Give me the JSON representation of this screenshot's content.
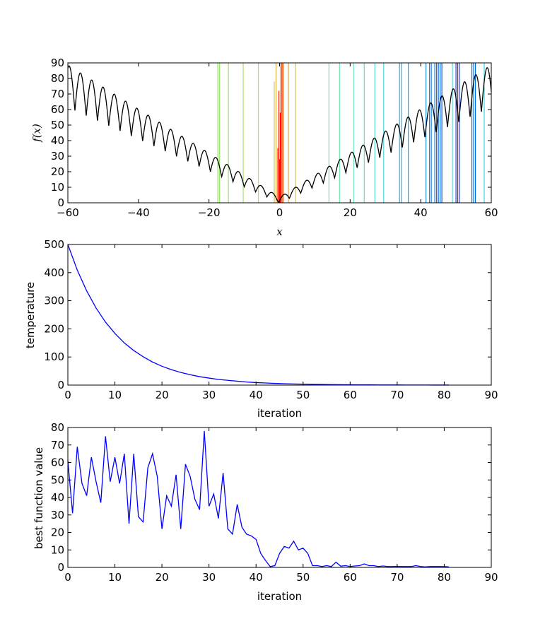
{
  "chart_data": [
    {
      "type": "line",
      "id": "top",
      "xlabel": "x",
      "ylabel": "f(x)",
      "xlim": [
        -60,
        60
      ],
      "ylim": [
        0,
        90
      ],
      "xticks": [
        -60,
        -40,
        -20,
        0,
        20,
        40,
        60
      ],
      "xtick_labels": [
        "−60",
        "−40",
        "−20",
        "0",
        "20",
        "40",
        "60"
      ],
      "yticks": [
        0,
        10,
        20,
        30,
        40,
        50,
        60,
        70,
        80,
        90
      ],
      "ytick_labels": [
        "0",
        "10",
        "20",
        "30",
        "40",
        "50",
        "60",
        "70",
        "80",
        "90"
      ],
      "grid": false,
      "function_curve": {
        "color": "#000000",
        "description": "f(x) = |x| * (1 + |sin|) style oscillating curve, approx 1.2*|x|+amplitude*|sin(pi x/3)|"
      },
      "vlines": [
        {
          "x": -17.5,
          "top": 90,
          "color": "#9be36b"
        },
        {
          "x": -17.0,
          "top": 90,
          "color": "#9be36b"
        },
        {
          "x": -14.5,
          "top": 90,
          "color": "#9be36b"
        },
        {
          "x": -10.3,
          "top": 90,
          "color": "#a8e07a"
        },
        {
          "x": -6.0,
          "top": 90,
          "color": "#b8d870"
        },
        {
          "x": -1.5,
          "top": 78,
          "color": "#d4c060"
        },
        {
          "x": -1.0,
          "top": 90,
          "color": "#e0b050"
        },
        {
          "x": -0.5,
          "top": 35,
          "color": "#ff3000"
        },
        {
          "x": -0.2,
          "top": 72,
          "color": "#ff2000"
        },
        {
          "x": 0.0,
          "top": 28,
          "color": "#ff1000"
        },
        {
          "x": 0.2,
          "top": 58,
          "color": "#ff0000"
        },
        {
          "x": 0.4,
          "top": 90,
          "color": "#ff2a00"
        },
        {
          "x": 0.7,
          "top": 90,
          "color": "#ff4000"
        },
        {
          "x": 1.0,
          "top": 90,
          "color": "#f06010"
        },
        {
          "x": 2.5,
          "top": 90,
          "color": "#e0a040"
        },
        {
          "x": 4.5,
          "top": 90,
          "color": "#d8c050"
        },
        {
          "x": 14.0,
          "top": 90,
          "color": "#70e8b0"
        },
        {
          "x": 17.0,
          "top": 90,
          "color": "#70e8b0"
        },
        {
          "x": 21.0,
          "top": 90,
          "color": "#70e8c0"
        },
        {
          "x": 24.0,
          "top": 90,
          "color": "#60e0c8"
        },
        {
          "x": 27.0,
          "top": 90,
          "color": "#60e0d0"
        },
        {
          "x": 29.5,
          "top": 90,
          "color": "#50d8d8"
        },
        {
          "x": 34.0,
          "top": 90,
          "color": "#30b0e0"
        },
        {
          "x": 34.5,
          "top": 90,
          "color": "#30a8e0"
        },
        {
          "x": 36.5,
          "top": 90,
          "color": "#20a0e0"
        },
        {
          "x": 41.5,
          "top": 90,
          "color": "#2090e0"
        },
        {
          "x": 42.5,
          "top": 90,
          "color": "#1080e0"
        },
        {
          "x": 43.0,
          "top": 90,
          "color": "#1080e0"
        },
        {
          "x": 44.0,
          "top": 90,
          "color": "#1070e0"
        },
        {
          "x": 44.5,
          "top": 90,
          "color": "#1070e0"
        },
        {
          "x": 45.0,
          "top": 90,
          "color": "#0868e0"
        },
        {
          "x": 45.5,
          "top": 90,
          "color": "#0868e0"
        },
        {
          "x": 46.0,
          "top": 90,
          "color": "#0060e0"
        },
        {
          "x": 49.0,
          "top": 90,
          "color": "#50e0d0"
        },
        {
          "x": 50.0,
          "top": 90,
          "color": "#4040c0"
        },
        {
          "x": 50.5,
          "top": 90,
          "color": "#6020a0"
        },
        {
          "x": 51.0,
          "top": 90,
          "color": "#3050d0"
        },
        {
          "x": 54.5,
          "top": 90,
          "color": "#0070e0"
        },
        {
          "x": 55.0,
          "top": 90,
          "color": "#0070e0"
        },
        {
          "x": 55.5,
          "top": 90,
          "color": "#0070e0"
        },
        {
          "x": 58.0,
          "top": 90,
          "color": "#40d0e0"
        }
      ]
    },
    {
      "type": "line",
      "id": "temperature",
      "xlabel": "iteration",
      "ylabel": "temperature",
      "xlim": [
        0,
        90
      ],
      "ylim": [
        0,
        500
      ],
      "xticks": [
        0,
        10,
        20,
        30,
        40,
        50,
        60,
        70,
        80,
        90
      ],
      "xtick_labels": [
        "0",
        "10",
        "20",
        "30",
        "40",
        "50",
        "60",
        "70",
        "80",
        "90"
      ],
      "yticks": [
        0,
        100,
        200,
        300,
        400,
        500
      ],
      "ytick_labels": [
        "0",
        "100",
        "200",
        "300",
        "400",
        "500"
      ],
      "grid": false,
      "series": [
        {
          "color": "#0000ff",
          "x": [
            0,
            2,
            4,
            6,
            8,
            10,
            12,
            14,
            16,
            18,
            20,
            22,
            24,
            26,
            28,
            30,
            32,
            34,
            36,
            38,
            40,
            42,
            44,
            46,
            48,
            50,
            52,
            54,
            56,
            58,
            60,
            62,
            64,
            66,
            68,
            70,
            72,
            74,
            76,
            78,
            80,
            81
          ],
          "y": [
            500,
            409,
            335,
            274,
            224,
            184,
            150,
            123,
            101,
            82,
            67,
            55,
            45,
            37,
            30,
            25,
            20,
            17,
            14,
            11,
            9,
            7.5,
            6.1,
            5.0,
            4.1,
            3.4,
            2.8,
            2.3,
            1.8,
            1.5,
            1.2,
            1.0,
            0.8,
            0.7,
            0.6,
            0.5,
            0.4,
            0.3,
            0.25,
            0.2,
            0.17,
            0.15
          ]
        }
      ]
    },
    {
      "type": "line",
      "id": "best",
      "xlabel": "iteration",
      "ylabel": "best function value",
      "xlim": [
        0,
        90
      ],
      "ylim": [
        0,
        80
      ],
      "xticks": [
        0,
        10,
        20,
        30,
        40,
        50,
        60,
        70,
        80,
        90
      ],
      "xtick_labels": [
        "0",
        "10",
        "20",
        "30",
        "40",
        "50",
        "60",
        "70",
        "80",
        "90"
      ],
      "yticks": [
        0,
        10,
        20,
        30,
        40,
        50,
        60,
        70,
        80
      ],
      "ytick_labels": [
        "0",
        "10",
        "20",
        "30",
        "40",
        "50",
        "60",
        "70",
        "80"
      ],
      "grid": false,
      "series": [
        {
          "color": "#0000ff",
          "x": [
            0,
            1,
            2,
            3,
            4,
            5,
            6,
            7,
            8,
            9,
            10,
            11,
            12,
            13,
            14,
            15,
            16,
            17,
            18,
            19,
            20,
            21,
            22,
            23,
            24,
            25,
            26,
            27,
            28,
            29,
            30,
            31,
            32,
            33,
            34,
            35,
            36,
            37,
            38,
            39,
            40,
            41,
            42,
            43,
            44,
            45,
            46,
            47,
            48,
            49,
            50,
            51,
            52,
            53,
            54,
            55,
            56,
            57,
            58,
            59,
            60,
            61,
            62,
            63,
            64,
            65,
            66,
            67,
            68,
            69,
            70,
            71,
            72,
            73,
            74,
            75,
            76,
            77,
            78,
            79,
            80,
            81
          ],
          "y": [
            61,
            31,
            69,
            48,
            41,
            63,
            49,
            37,
            75,
            49,
            63,
            48,
            65,
            25,
            65,
            29,
            26,
            57,
            65,
            52,
            22,
            41,
            35,
            53,
            22,
            59,
            52,
            39,
            33,
            78,
            35,
            42,
            28,
            54,
            22,
            19,
            36,
            23,
            19,
            18,
            16,
            8,
            4,
            0.5,
            1,
            8,
            12,
            11,
            15,
            10,
            11,
            8,
            1,
            1,
            0.5,
            1,
            0.5,
            3,
            0.7,
            1,
            0.5,
            0.8,
            1,
            2,
            1,
            1,
            0.5,
            0.8,
            0.5,
            0.5,
            0.6,
            0.5,
            0.5,
            0.5,
            1,
            0.5,
            0.3,
            0.5,
            0.5,
            0.5,
            0.5,
            0.3
          ]
        }
      ]
    }
  ]
}
